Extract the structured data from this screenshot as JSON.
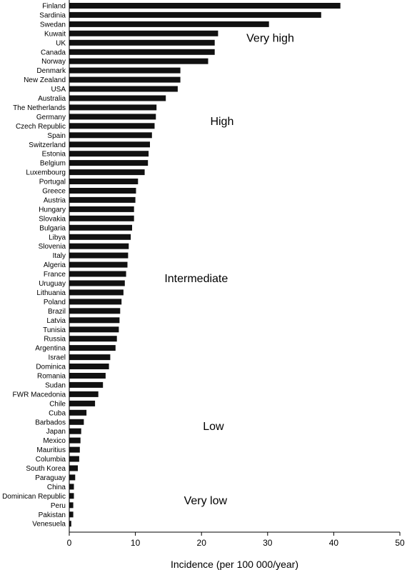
{
  "chart_data": {
    "type": "bar",
    "orientation": "horizontal",
    "title": "",
    "xlabel": "Incidence (per 100 000/year)",
    "ylabel": "",
    "xlim": [
      0,
      50
    ],
    "xticks": [
      0,
      10,
      20,
      30,
      40,
      50
    ],
    "grid": false,
    "categories": [
      "Finland",
      "Sardinia",
      "Swedan",
      "Kuwait",
      "UK",
      "Canada",
      "Norway",
      "Denmark",
      "New Zealand",
      "USA",
      "Australia",
      "The Netherlands",
      "Germany",
      "Czech Republic",
      "Spain",
      "Switzerland",
      "Estonia",
      "Belgium",
      "Luxembourg",
      "Portugal",
      "Greece",
      "Austria",
      "Hungary",
      "Slovakia",
      "Bulgaria",
      "Libya",
      "Slovenia",
      "Italy",
      "Algeria",
      "France",
      "Uruguay",
      "Lithuania",
      "Poland",
      "Brazil",
      "Latvia",
      "Tunisia",
      "Russia",
      "Argentina",
      "Israel",
      "Dominica",
      "Romania",
      "Sudan",
      "FWR Macedonia",
      "Chile",
      "Cuba",
      "Barbados",
      "Japan",
      "Mexico",
      "Mauritius",
      "Columbia",
      "South Korea",
      "Paraguay",
      "China",
      "Dominican Republic",
      "Peru",
      "Pakistan",
      "Venesuela"
    ],
    "values": [
      41.0,
      38.1,
      30.2,
      22.5,
      22.0,
      22.0,
      21.0,
      16.8,
      16.8,
      16.4,
      14.6,
      13.2,
      13.1,
      12.9,
      12.5,
      12.2,
      12.0,
      11.9,
      11.4,
      10.4,
      10.1,
      10.0,
      9.8,
      9.8,
      9.5,
      9.3,
      9.0,
      8.9,
      8.8,
      8.6,
      8.4,
      8.2,
      7.9,
      7.7,
      7.6,
      7.5,
      7.2,
      7.0,
      6.2,
      6.0,
      5.5,
      5.1,
      4.4,
      3.9,
      2.6,
      2.2,
      1.8,
      1.7,
      1.6,
      1.5,
      1.3,
      0.9,
      0.7,
      0.7,
      0.6,
      0.6,
      0.3
    ],
    "annotations": [
      {
        "text": "Very high",
        "category_index": 3.5,
        "value": 30.4
      },
      {
        "text": "High",
        "category_index": 12.5,
        "value": 23.1
      },
      {
        "text": "Intermediate",
        "category_index": 29.5,
        "value": 19.2
      },
      {
        "text": "Low",
        "category_index": 45.5,
        "value": 21.8
      },
      {
        "text": "Very low",
        "category_index": 53.5,
        "value": 20.6
      }
    ]
  }
}
